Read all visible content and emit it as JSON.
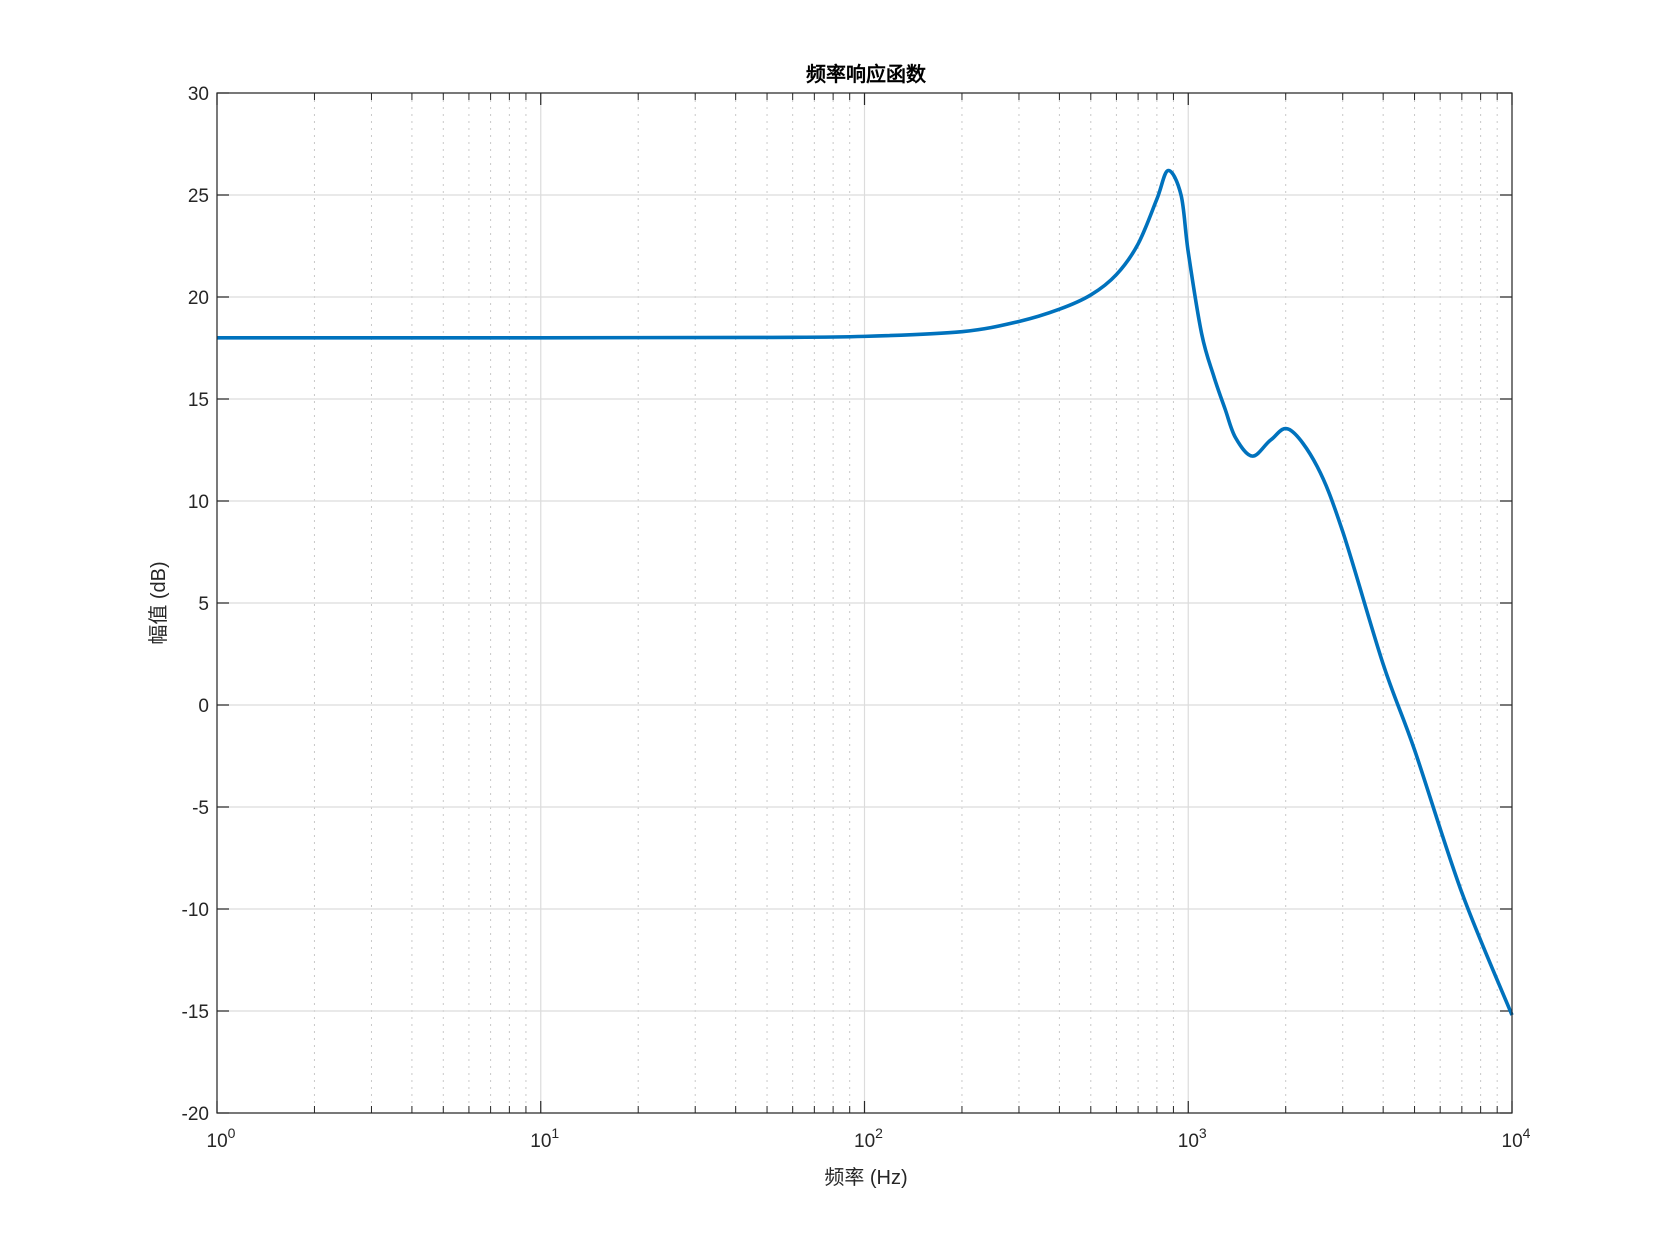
{
  "chart_data": {
    "type": "line",
    "title": "频率响应函数",
    "xlabel": "频率 (Hz)",
    "ylabel": "幅值 (dB)",
    "xscale": "log",
    "xlim": [
      1,
      10000
    ],
    "ylim": [
      -20,
      30
    ],
    "xticks": [
      {
        "base": "10",
        "exp": "0"
      },
      {
        "base": "10",
        "exp": "1"
      },
      {
        "base": "10",
        "exp": "2"
      },
      {
        "base": "10",
        "exp": "3"
      },
      {
        "base": "10",
        "exp": "4"
      }
    ],
    "yticks": [
      "30",
      "25",
      "20",
      "15",
      "10",
      "5",
      "0",
      "-5",
      "-10",
      "-15",
      "-20"
    ],
    "grid": true,
    "minor_grid": true,
    "line_color": "#0072BD",
    "series": [
      {
        "x": [
          1,
          10,
          50,
          100,
          200,
          300,
          400,
          500,
          600,
          700,
          800,
          867,
          950,
          1000,
          1100,
          1200,
          1300,
          1400,
          1578,
          1800,
          2055,
          2500,
          3000,
          4000,
          5000,
          7000,
          10000
        ],
        "y": [
          18.0,
          18.0,
          18.02,
          18.07,
          18.3,
          18.8,
          19.4,
          20.1,
          21.1,
          22.6,
          24.8,
          26.2,
          25.0,
          22.2,
          18.2,
          16.1,
          14.5,
          13.1,
          12.2,
          13.0,
          13.5,
          11.7,
          8.5,
          2.0,
          -2.2,
          -9.2,
          -15.2
        ]
      }
    ]
  }
}
